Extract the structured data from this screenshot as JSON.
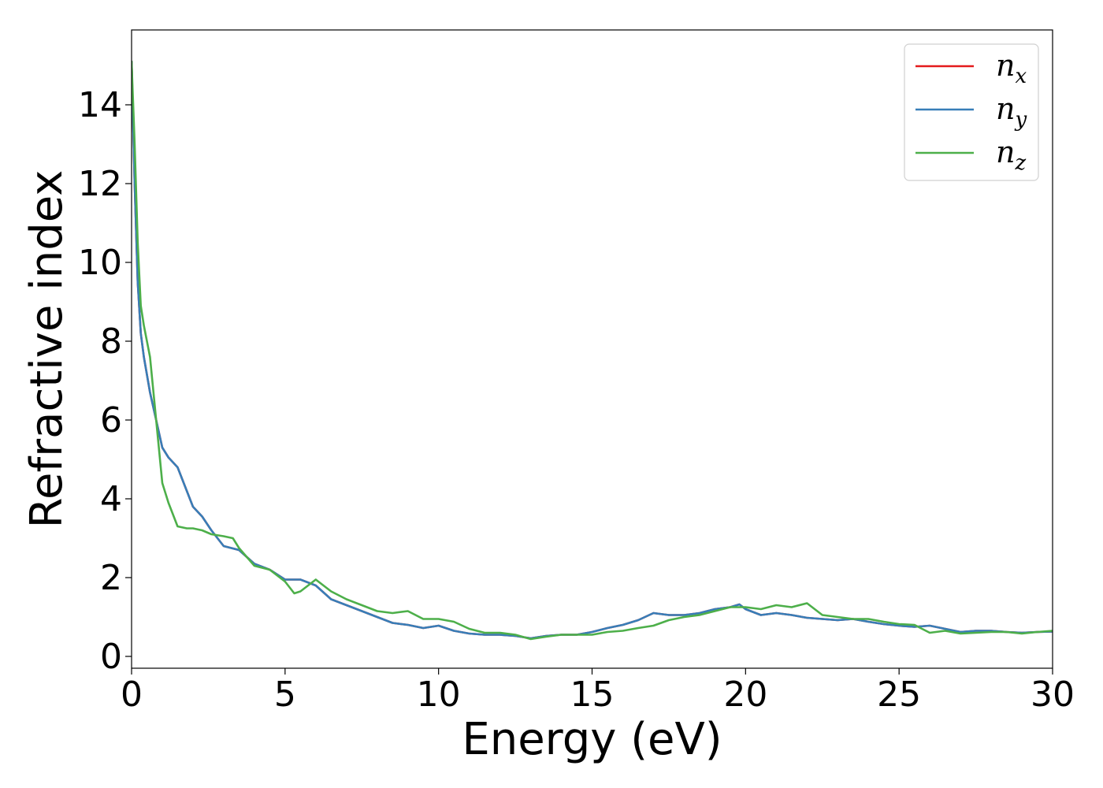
{
  "chart_data": {
    "type": "line",
    "xlabel": "Energy (eV)",
    "ylabel": "Refractive index",
    "xlim": [
      0,
      30
    ],
    "ylim": [
      -0.3,
      15.9
    ],
    "xticks": [
      "0",
      "5",
      "10",
      "15",
      "20",
      "25",
      "30"
    ],
    "yticks": [
      "0",
      "2",
      "4",
      "6",
      "8",
      "10",
      "12",
      "14"
    ],
    "grid": false,
    "legend_position": "top-right",
    "series": [
      {
        "name": "n_x",
        "legend_base": "n",
        "legend_sub": "x",
        "color": "#e41a1c",
        "x": [
          0,
          0.1,
          0.2,
          0.3,
          0.4,
          0.6,
          0.8,
          1.0,
          1.2,
          1.5,
          1.8,
          2.0,
          2.3,
          2.6,
          3.0,
          3.5,
          4.0,
          4.5,
          5.0,
          5.5,
          6.0,
          6.5,
          7.0,
          7.5,
          8.0,
          8.5,
          9.0,
          9.5,
          10.0,
          10.5,
          11.0,
          11.5,
          12.0,
          12.5,
          13.0,
          13.5,
          14.0,
          14.5,
          15.0,
          15.5,
          16.0,
          16.5,
          17.0,
          17.5,
          18.0,
          18.5,
          19.0,
          19.5,
          19.8,
          20.0,
          20.5,
          21.0,
          21.5,
          22.0,
          22.5,
          23.0,
          23.5,
          24.0,
          24.5,
          25.0,
          25.5,
          26.0,
          26.5,
          27.0,
          27.5,
          28.0,
          28.5,
          29.0,
          29.5,
          30.0
        ],
        "values": [
          15.1,
          12.0,
          9.5,
          8.2,
          7.6,
          6.7,
          6.0,
          5.3,
          5.05,
          4.8,
          4.2,
          3.8,
          3.55,
          3.2,
          2.8,
          2.7,
          2.35,
          2.2,
          1.95,
          1.95,
          1.8,
          1.45,
          1.3,
          1.15,
          1.0,
          0.85,
          0.8,
          0.72,
          0.78,
          0.65,
          0.58,
          0.55,
          0.55,
          0.52,
          0.46,
          0.52,
          0.55,
          0.55,
          0.62,
          0.72,
          0.8,
          0.92,
          1.1,
          1.05,
          1.05,
          1.1,
          1.2,
          1.25,
          1.32,
          1.2,
          1.05,
          1.1,
          1.05,
          0.98,
          0.95,
          0.92,
          0.95,
          0.88,
          0.82,
          0.78,
          0.75,
          0.78,
          0.7,
          0.62,
          0.65,
          0.65,
          0.62,
          0.6,
          0.62,
          0.63
        ]
      },
      {
        "name": "n_y",
        "legend_base": "n",
        "legend_sub": "y",
        "color": "#377eb8",
        "x": [
          0,
          0.1,
          0.2,
          0.3,
          0.4,
          0.6,
          0.8,
          1.0,
          1.2,
          1.5,
          1.8,
          2.0,
          2.3,
          2.6,
          3.0,
          3.5,
          4.0,
          4.5,
          5.0,
          5.5,
          6.0,
          6.5,
          7.0,
          7.5,
          8.0,
          8.5,
          9.0,
          9.5,
          10.0,
          10.5,
          11.0,
          11.5,
          12.0,
          12.5,
          13.0,
          13.5,
          14.0,
          14.5,
          15.0,
          15.5,
          16.0,
          16.5,
          17.0,
          17.5,
          18.0,
          18.5,
          19.0,
          19.5,
          19.8,
          20.0,
          20.5,
          21.0,
          21.5,
          22.0,
          22.5,
          23.0,
          23.5,
          24.0,
          24.5,
          25.0,
          25.5,
          26.0,
          26.5,
          27.0,
          27.5,
          28.0,
          28.5,
          29.0,
          29.5,
          30.0
        ],
        "values": [
          15.1,
          12.0,
          9.5,
          8.2,
          7.6,
          6.7,
          6.0,
          5.3,
          5.05,
          4.8,
          4.2,
          3.8,
          3.55,
          3.2,
          2.8,
          2.7,
          2.35,
          2.2,
          1.95,
          1.95,
          1.8,
          1.45,
          1.3,
          1.15,
          1.0,
          0.85,
          0.8,
          0.72,
          0.78,
          0.65,
          0.58,
          0.55,
          0.55,
          0.52,
          0.46,
          0.52,
          0.55,
          0.55,
          0.62,
          0.72,
          0.8,
          0.92,
          1.1,
          1.05,
          1.05,
          1.1,
          1.2,
          1.25,
          1.32,
          1.2,
          1.05,
          1.1,
          1.05,
          0.98,
          0.95,
          0.92,
          0.95,
          0.88,
          0.82,
          0.78,
          0.75,
          0.78,
          0.7,
          0.62,
          0.65,
          0.65,
          0.62,
          0.6,
          0.62,
          0.63
        ]
      },
      {
        "name": "n_z",
        "legend_base": "n",
        "legend_sub": "z",
        "color": "#4daf4a",
        "x": [
          0,
          0.1,
          0.2,
          0.3,
          0.4,
          0.6,
          0.8,
          1.0,
          1.2,
          1.5,
          1.8,
          2.0,
          2.3,
          2.6,
          3.0,
          3.3,
          3.5,
          4.0,
          4.5,
          5.0,
          5.3,
          5.5,
          6.0,
          6.5,
          7.0,
          7.5,
          8.0,
          8.5,
          9.0,
          9.5,
          10.0,
          10.5,
          11.0,
          11.5,
          12.0,
          12.5,
          13.0,
          13.5,
          14.0,
          14.5,
          15.0,
          15.5,
          16.0,
          16.5,
          17.0,
          17.5,
          18.0,
          18.5,
          19.0,
          19.5,
          20.0,
          20.5,
          21.0,
          21.5,
          22.0,
          22.5,
          23.0,
          23.5,
          24.0,
          24.5,
          25.0,
          25.5,
          26.0,
          26.5,
          27.0,
          27.5,
          28.0,
          28.5,
          29.0,
          29.5,
          30.0
        ],
        "values": [
          15.1,
          13.0,
          10.5,
          8.9,
          8.4,
          7.6,
          6.0,
          4.4,
          3.9,
          3.3,
          3.25,
          3.25,
          3.2,
          3.1,
          3.05,
          3.0,
          2.75,
          2.3,
          2.2,
          1.9,
          1.6,
          1.65,
          1.95,
          1.65,
          1.45,
          1.3,
          1.15,
          1.1,
          1.15,
          0.95,
          0.95,
          0.88,
          0.7,
          0.6,
          0.6,
          0.55,
          0.44,
          0.5,
          0.55,
          0.55,
          0.55,
          0.62,
          0.65,
          0.72,
          0.78,
          0.92,
          1.0,
          1.05,
          1.15,
          1.25,
          1.25,
          1.2,
          1.3,
          1.25,
          1.35,
          1.05,
          1.0,
          0.95,
          0.95,
          0.88,
          0.82,
          0.8,
          0.6,
          0.65,
          0.58,
          0.6,
          0.62,
          0.62,
          0.58,
          0.62,
          0.65
        ]
      }
    ]
  }
}
